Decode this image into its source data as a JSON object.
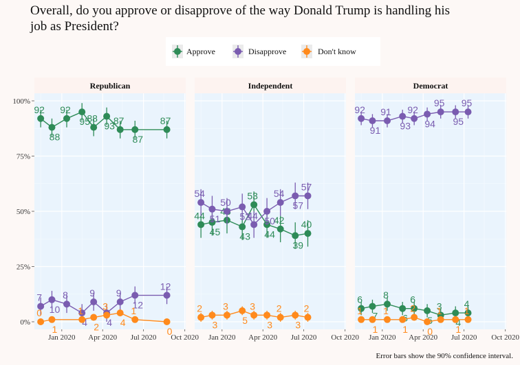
{
  "chart_data": {
    "type": "line",
    "title": "Overall, do you approve or disapprove of the way Donald Trump is handling his job as President?",
    "caption": "Error bars show the 90% confidence interval.",
    "ylabel": "",
    "xlabel": "",
    "y_ticks": [
      "0%",
      "25%",
      "50%",
      "75%",
      "100%"
    ],
    "x_ticks": [
      "Jan 2020",
      "Apr 2020",
      "Jul 2020",
      "Oct 2020"
    ],
    "ylim": [
      0,
      100
    ],
    "grid": true,
    "legend": {
      "position": "top",
      "entries": [
        "Approve",
        "Disapprove",
        "Don't know"
      ]
    },
    "colors": {
      "Approve": "#2e8b57",
      "Disapprove": "#7a5cb0",
      "Don't know": "#ff8a1c"
    },
    "dates": [
      "2019-11-15",
      "2019-12-10",
      "2020-01-12",
      "2020-02-15",
      "2020-03-12",
      "2020-04-10",
      "2020-05-10",
      "2020-06-12",
      "2020-07-10",
      "2020-08-22",
      "2020-09-20"
    ],
    "panels": [
      {
        "name": "Republican",
        "series": [
          {
            "name": "Approve",
            "values": [
              92,
              88,
              92,
              95,
              88,
              93,
              87,
              87,
              null,
              87,
              null
            ]
          },
          {
            "name": "Disapprove",
            "values": [
              7,
              10,
              8,
              4,
              9,
              4,
              9,
              12,
              null,
              12,
              null
            ]
          },
          {
            "name": "Don't know",
            "values": [
              0,
              1,
              null,
              1,
              2,
              3,
              4,
              1,
              null,
              0,
              null
            ]
          }
        ]
      },
      {
        "name": "Independent",
        "series": [
          {
            "name": "Approve",
            "values": [
              44,
              45,
              46,
              43,
              53,
              44,
              42,
              39,
              40,
              null,
              null
            ]
          },
          {
            "name": "Disapprove",
            "values": [
              54,
              51,
              50,
              52,
              44,
              50,
              54,
              57,
              57,
              null,
              null
            ]
          },
          {
            "name": "Don't know",
            "values": [
              2,
              3,
              3,
              5,
              3,
              3,
              2,
              3,
              2,
              null,
              null
            ]
          }
        ]
      },
      {
        "name": "Democrat",
        "series": [
          {
            "name": "Approve",
            "values": [
              6,
              7,
              8,
              6,
              6,
              5,
              3,
              4,
              4,
              null,
              null
            ]
          },
          {
            "name": "Disapprove",
            "values": [
              92,
              91,
              91,
              93,
              92,
              94,
              95,
              95,
              95,
              null,
              null
            ]
          },
          {
            "name": "Don't know",
            "values": [
              1,
              1,
              1,
              1,
              2,
              0,
              1,
              1,
              1,
              null,
              null
            ]
          }
        ]
      }
    ]
  }
}
